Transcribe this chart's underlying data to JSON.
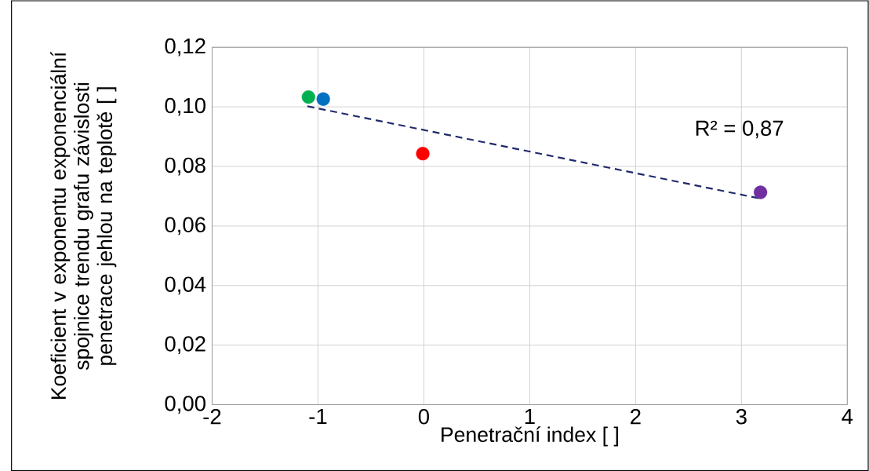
{
  "chart_data": {
    "type": "scatter",
    "xlabel": "Penetrační index [ ]",
    "ylabel": "Koeficient v exponentu exponenciální spojnice trendu grafu závislosti penetrace jehlou na teplotě [ ]",
    "xlim": [
      -2,
      4
    ],
    "xticks": [
      -2,
      -1,
      0,
      1,
      2,
      3,
      4
    ],
    "ylim": [
      0,
      0.12
    ],
    "yticks": [
      {
        "value": 0,
        "label": "0,00"
      },
      {
        "value": 0.02,
        "label": "0,02"
      },
      {
        "value": 0.04,
        "label": "0,04"
      },
      {
        "value": 0.06,
        "label": "0,06"
      },
      {
        "value": 0.08,
        "label": "0,08"
      },
      {
        "value": 0.1,
        "label": "0,10"
      },
      {
        "value": 0.12,
        "label": "0,12"
      }
    ],
    "grid": true,
    "series": [
      {
        "type": "line",
        "color": "#1f2a6b",
        "line_style": "dashed",
        "x": [
          -1.1,
          3.18
        ],
        "values": [
          0.1002,
          0.0692
        ]
      },
      {
        "type": "scatter",
        "marker": "circle",
        "x": [
          -1.09,
          -0.95,
          -0.01,
          3.18
        ],
        "values": [
          0.1033,
          0.1026,
          0.0843,
          0.0713
        ],
        "colors": [
          "#00b050",
          "#0070c0",
          "#ff0000",
          "#7030a0"
        ]
      }
    ],
    "annotations": [
      "R² = 0,87"
    ]
  }
}
